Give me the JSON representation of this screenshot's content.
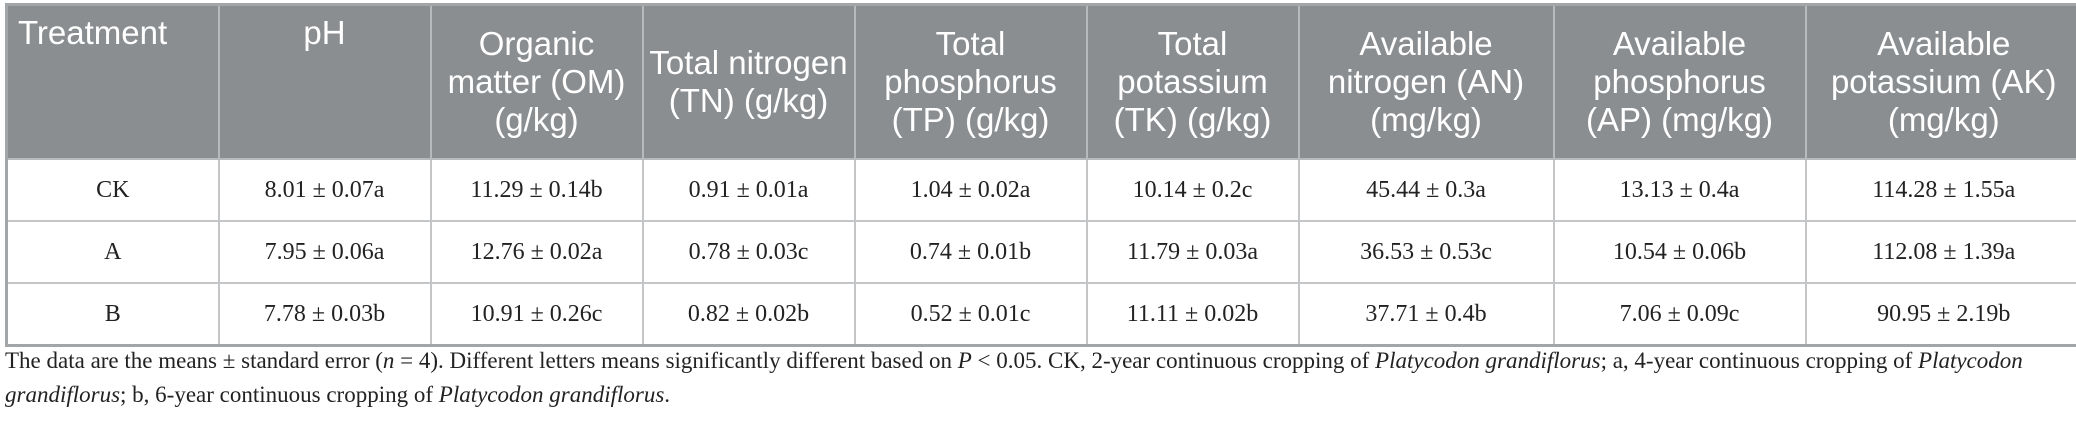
{
  "table": {
    "headers": [
      "Treatment",
      "pH",
      "Organic matter (OM) (g/kg)",
      "Total nitrogen (TN) (g/kg)",
      "Total phosphorus (TP) (g/kg)",
      "Total potassium (TK) (g/kg)",
      "Available nitrogen (AN) (mg/kg)",
      "Available phosphorus (AP) (mg/kg)",
      "Available potassium (AK) (mg/kg)"
    ],
    "rows": [
      [
        "CK",
        "8.01 ± 0.07a",
        "11.29 ± 0.14b",
        "0.91 ± 0.01a",
        "1.04 ± 0.02a",
        "10.14 ± 0.2c",
        "45.44 ± 0.3a",
        "13.13 ± 0.4a",
        "114.28 ± 1.55a"
      ],
      [
        "A",
        "7.95 ± 0.06a",
        "12.76 ± 0.02a",
        "0.78 ± 0.03c",
        "0.74 ± 0.01b",
        "11.79 ± 0.03a",
        "36.53 ± 0.53c",
        "10.54 ± 0.06b",
        "112.08 ± 1.39a"
      ],
      [
        "B",
        "7.78 ± 0.03b",
        "10.91 ± 0.26c",
        "0.82 ± 0.02b",
        "0.52 ± 0.01c",
        "11.11 ± 0.02b",
        "37.71 ± 0.4b",
        "7.06 ± 0.09c",
        "90.95 ± 2.19b"
      ]
    ]
  },
  "footnote": {
    "part1": "The data are the means ± standard error (",
    "n_var": "n",
    "part2": " = 4). Different letters means significantly different based on ",
    "p_var": "P",
    "part3": " < 0.05. CK, 2-year continuous cropping of ",
    "species1": "Platycodon grandiflorus",
    "part4": "; a, 4-year continuous cropping of ",
    "species2": "Platycodon grandiflorus",
    "part5": "; b, 6-year continuous cropping of ",
    "species3": "Platycodon grandiflorus",
    "part6": "."
  }
}
